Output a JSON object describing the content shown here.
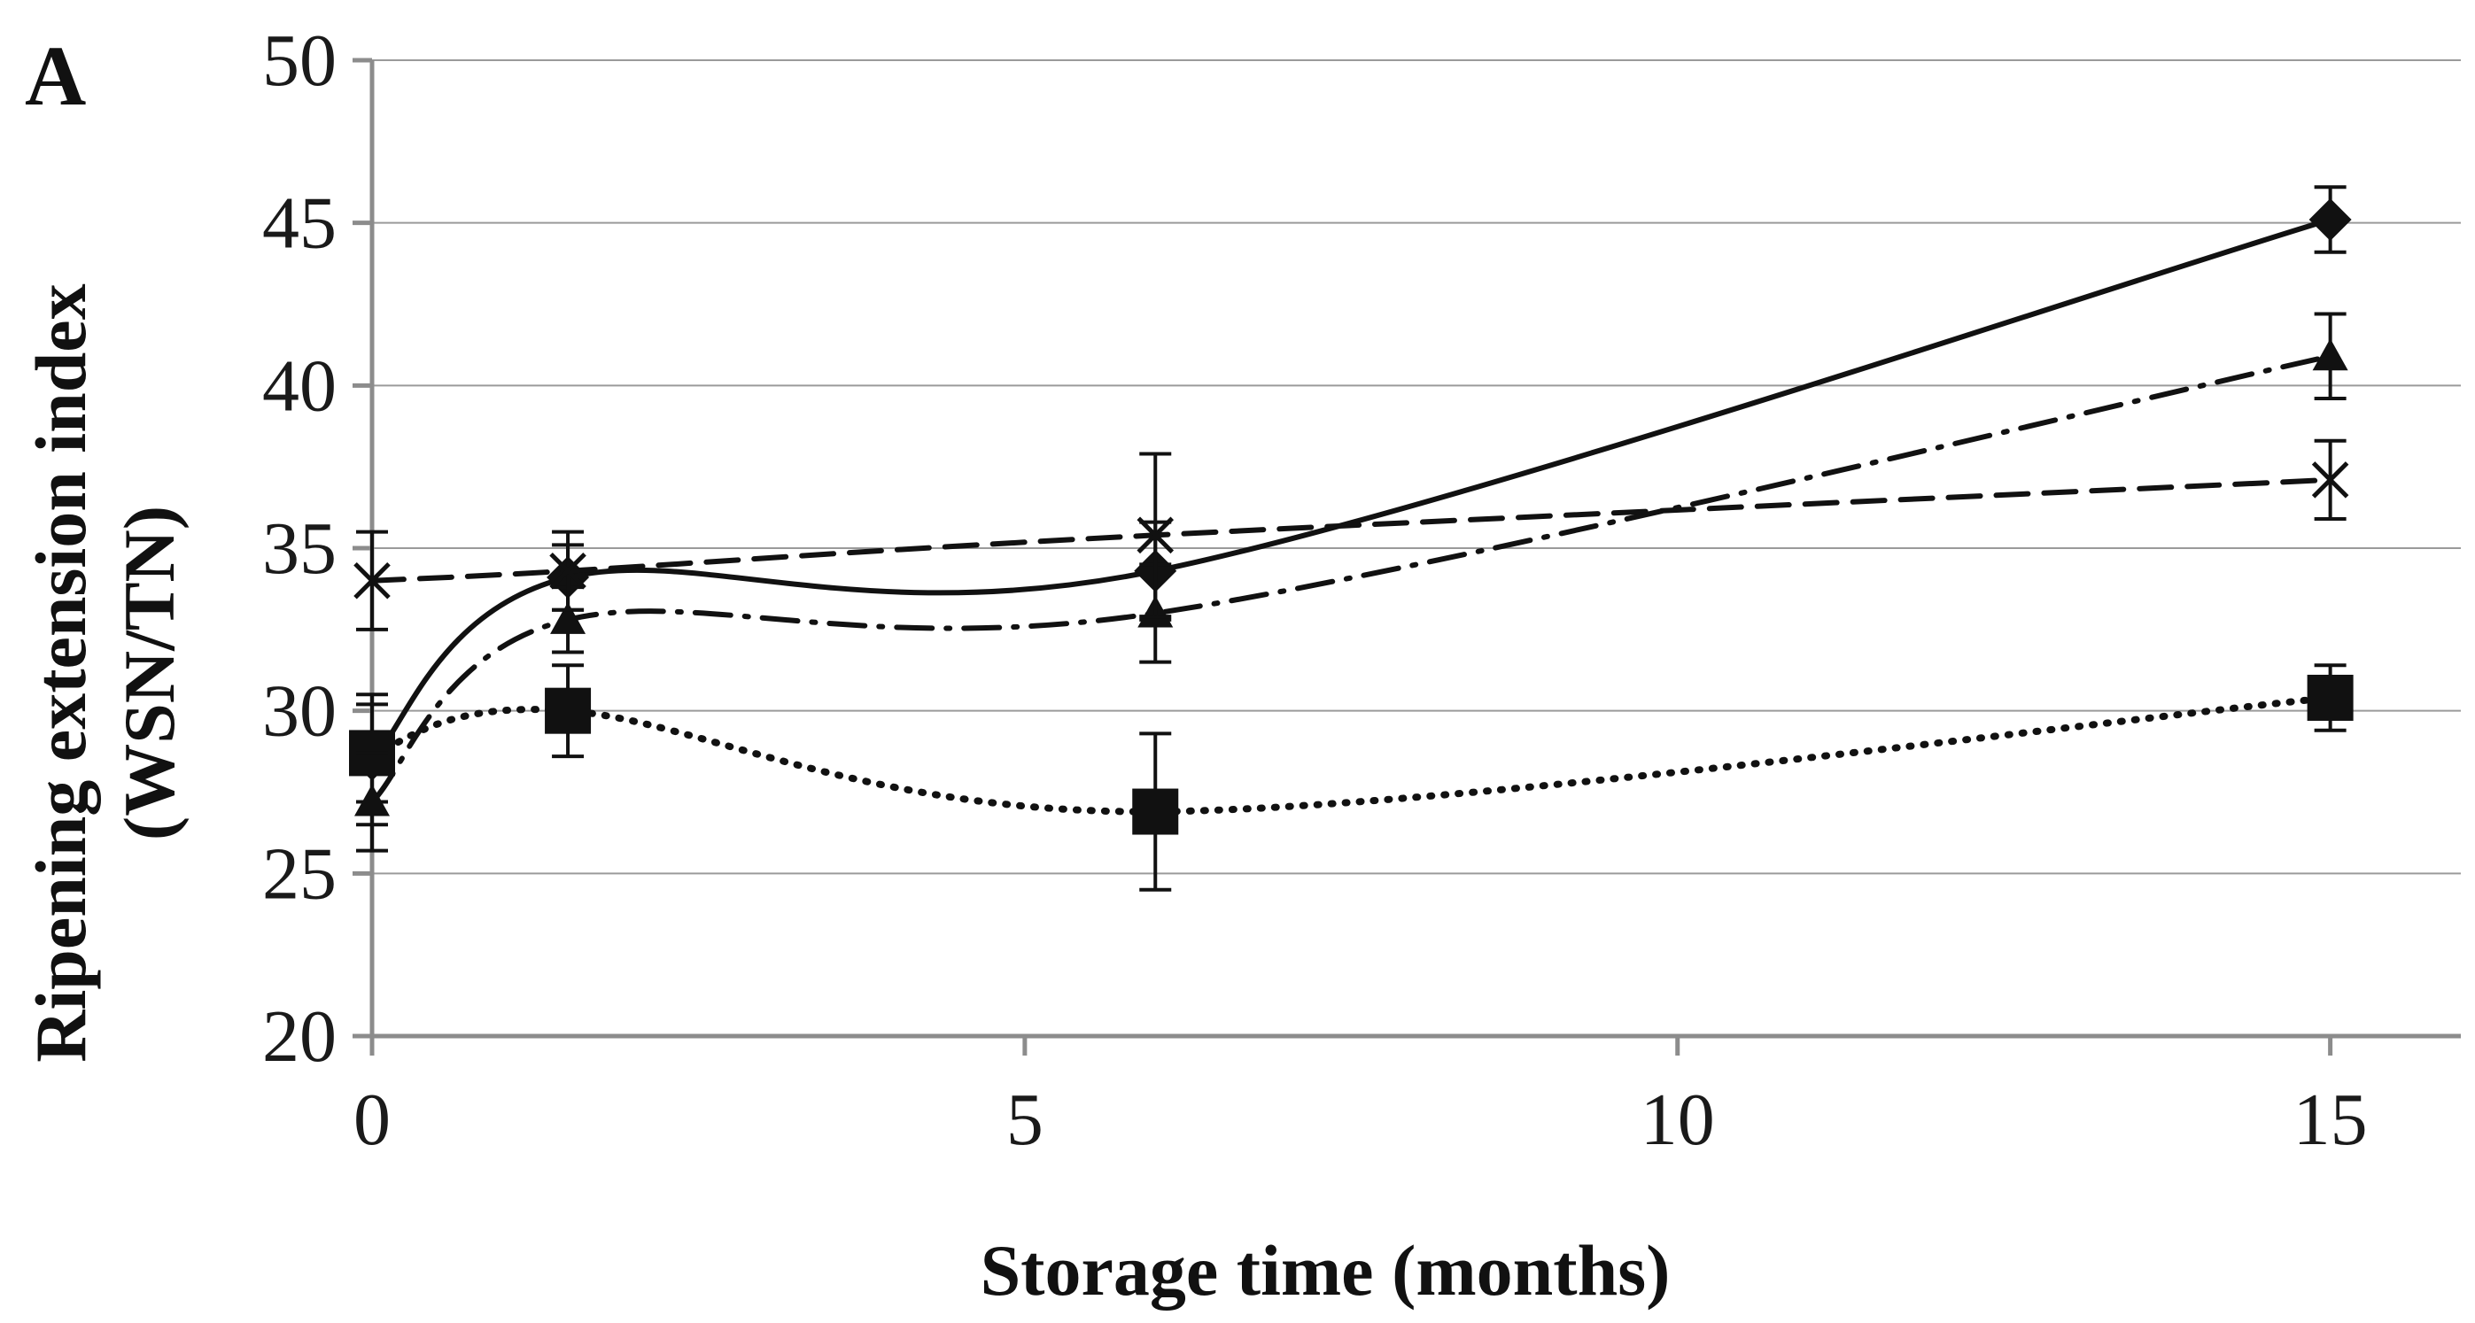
{
  "panel_label": "A",
  "chart_data": {
    "type": "line",
    "title": "",
    "xlabel": "Storage time (months)",
    "ylabel_lines": [
      "Ripening extension index",
      "(WSN/TN)"
    ],
    "xlim": [
      0,
      16
    ],
    "ylim": [
      20,
      50
    ],
    "xticks": [
      0,
      5,
      10,
      15
    ],
    "yticks": [
      20,
      25,
      30,
      35,
      40,
      45,
      50
    ],
    "grid": "horizontal",
    "legend": "none",
    "series": [
      {
        "name": "diamond-solid",
        "marker": "diamond",
        "line_style": "solid",
        "x": [
          0,
          1.5,
          6,
          15
        ],
        "y": [
          28.5,
          34.1,
          34.3,
          45.1
        ],
        "err": [
          2.0,
          1.0,
          1.5,
          1.0
        ]
      },
      {
        "name": "square-dotted",
        "marker": "square",
        "line_style": "dotted",
        "x": [
          0,
          1.5,
          6,
          15
        ],
        "y": [
          28.7,
          30.0,
          26.9,
          30.4
        ],
        "err": [
          1.5,
          1.4,
          2.4,
          1.0
        ]
      },
      {
        "name": "triangle-dashdot",
        "marker": "triangle",
        "line_style": "dash-dot",
        "x": [
          0,
          1.5,
          6,
          15
        ],
        "y": [
          27.2,
          32.8,
          33.0,
          40.9
        ],
        "err": [
          1.5,
          1.0,
          1.5,
          1.3
        ]
      },
      {
        "name": "x-dashed",
        "marker": "x",
        "line_style": "dashed",
        "x": [
          0,
          1.5,
          6,
          15
        ],
        "y": [
          34.0,
          34.3,
          35.4,
          37.1
        ],
        "err": [
          1.5,
          1.2,
          2.5,
          1.2
        ]
      }
    ]
  }
}
